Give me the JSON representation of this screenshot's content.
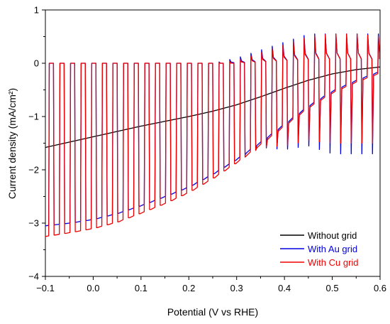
{
  "chart_data": {
    "type": "line",
    "title": "",
    "xlabel": "Potential (V vs RHE)",
    "ylabel": "Current density (mA/cm²)",
    "xlim": [
      -0.1,
      0.6
    ],
    "ylim": [
      -4,
      1
    ],
    "xticks": [
      "−0.1",
      "0.0",
      "0.1",
      "0.2",
      "0.3",
      "0.4",
      "0.5",
      "0.6"
    ],
    "xtick_values": [
      -0.1,
      0.0,
      0.1,
      0.2,
      0.3,
      0.4,
      0.5,
      0.6
    ],
    "yticks": [
      "−4",
      "−3",
      "−2",
      "−1",
      "0",
      "1"
    ],
    "ytick_values": [
      -4,
      -3,
      -2,
      -1,
      0,
      1
    ],
    "grid": false,
    "legend_position": "bottom-right",
    "chopping": {
      "period_v": 0.0222,
      "first_on_v": -0.093,
      "duty_on": 0.5,
      "dark_current": 0.0
    },
    "series": [
      {
        "name": "Without grid",
        "color": "#000000",
        "chopped": false,
        "envelope_x": [
          -0.1,
          -0.05,
          0.0,
          0.05,
          0.1,
          0.15,
          0.2,
          0.25,
          0.3,
          0.35,
          0.4,
          0.45,
          0.5,
          0.55,
          0.6
        ],
        "envelope_y": [
          -1.58,
          -1.48,
          -1.38,
          -1.28,
          -1.18,
          -1.09,
          -1.0,
          -0.9,
          -0.78,
          -0.63,
          -0.47,
          -0.32,
          -0.2,
          -0.12,
          -0.07
        ]
      },
      {
        "name": "With Au grid",
        "color": "#0000dd",
        "chopped": true,
        "envelope_x": [
          -0.1,
          -0.05,
          0.0,
          0.05,
          0.1,
          0.15,
          0.2,
          0.25,
          0.3,
          0.35,
          0.4,
          0.45,
          0.5,
          0.55,
          0.6
        ],
        "envelope_y": [
          -3.05,
          -3.0,
          -2.93,
          -2.82,
          -2.67,
          -2.5,
          -2.32,
          -2.08,
          -1.8,
          -1.48,
          -1.14,
          -0.8,
          -0.52,
          -0.32,
          -0.15
        ],
        "on_peak_y": [
          0.0,
          0.0,
          0.0,
          0.0,
          0.0,
          0.0,
          0.0,
          0.0,
          0.1,
          0.25,
          0.4,
          0.55,
          0.55,
          0.55,
          0.55
        ],
        "off_spike_y": [
          -3.05,
          -3.0,
          -2.93,
          -2.82,
          -2.67,
          -2.5,
          -2.32,
          -2.08,
          -1.8,
          -1.58,
          -1.62,
          -1.55,
          -1.7,
          -1.7,
          -1.7
        ]
      },
      {
        "name": "With Cu grid",
        "color": "#ee0000",
        "chopped": true,
        "envelope_x": [
          -0.1,
          -0.05,
          0.0,
          0.05,
          0.1,
          0.15,
          0.2,
          0.25,
          0.3,
          0.35,
          0.4,
          0.45,
          0.5,
          0.55,
          0.6
        ],
        "envelope_y": [
          -3.25,
          -3.18,
          -3.1,
          -2.98,
          -2.81,
          -2.63,
          -2.42,
          -2.16,
          -1.86,
          -1.52,
          -1.17,
          -0.83,
          -0.55,
          -0.35,
          -0.18
        ],
        "on_peak_y": [
          0.0,
          0.0,
          0.0,
          0.0,
          0.0,
          0.0,
          0.0,
          0.0,
          0.05,
          0.2,
          0.35,
          0.5,
          0.55,
          0.55,
          0.5
        ],
        "off_spike_y": [
          -3.25,
          -3.18,
          -3.1,
          -2.98,
          -2.81,
          -2.63,
          -2.42,
          -2.16,
          -1.86,
          -1.58,
          -1.55,
          -1.45,
          -1.5,
          -1.5,
          -1.5
        ]
      }
    ]
  }
}
